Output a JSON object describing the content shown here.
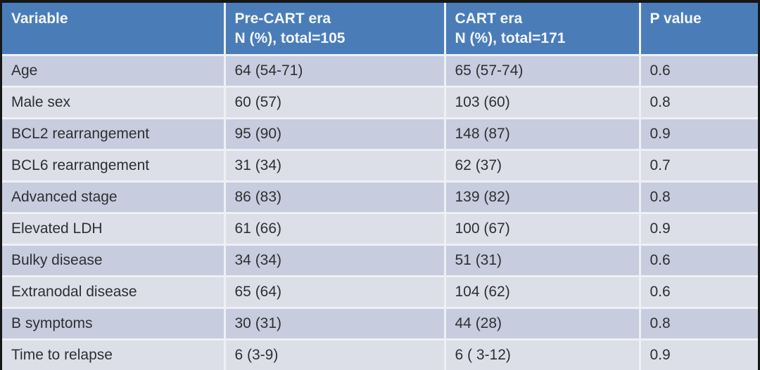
{
  "colors": {
    "header_bg": "#4a7db8",
    "header_text": "#f4f7fb",
    "row_dark_bg": "#c7cdde",
    "row_light_bg": "#dcdfe8",
    "grid_line": "#eef0f5",
    "body_text": "#2d2f33",
    "frame_bg": "#161616"
  },
  "table": {
    "columns": [
      {
        "label": "Variable",
        "sub": ""
      },
      {
        "label": "Pre-CART era",
        "sub": "N (%), total=105"
      },
      {
        "label": "CART era",
        "sub": "N (%), total=171"
      },
      {
        "label": "P value",
        "sub": ""
      }
    ],
    "rows": [
      {
        "variable": "Age",
        "pre_cart": "64 (54-71)",
        "cart": "65 (57-74)",
        "p_value": "0.6"
      },
      {
        "variable": "Male sex",
        "pre_cart": "60 (57)",
        "cart": "103 (60)",
        "p_value": "0.8"
      },
      {
        "variable": "BCL2 rearrangement",
        "pre_cart": "95 (90)",
        "cart": "148 (87)",
        "p_value": "0.9"
      },
      {
        "variable": "BCL6 rearrangement",
        "pre_cart": "31 (34)",
        "cart": "62 (37)",
        "p_value": "0.7"
      },
      {
        "variable": "Advanced stage",
        "pre_cart": "86 (83)",
        "cart": "139 (82)",
        "p_value": "0.8"
      },
      {
        "variable": "Elevated LDH",
        "pre_cart": "61 (66)",
        "cart": "100 (67)",
        "p_value": "0.9"
      },
      {
        "variable": "Bulky disease",
        "pre_cart": "34 (34)",
        "cart": "51 (31)",
        "p_value": "0.6"
      },
      {
        "variable": "Extranodal disease",
        "pre_cart": "65 (64)",
        "cart": "104 (62)",
        "p_value": "0.6"
      },
      {
        "variable": "B symptoms",
        "pre_cart": "30 (31)",
        "cart": "44 (28)",
        "p_value": "0.8"
      },
      {
        "variable": "Time to relapse",
        "pre_cart": "6 (3-9)",
        "cart": "6 ( 3-12)",
        "p_value": "0.9"
      }
    ]
  }
}
